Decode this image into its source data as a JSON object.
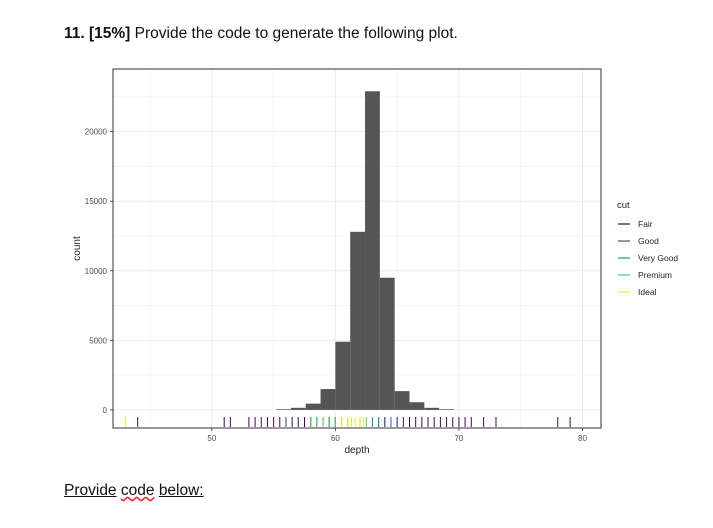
{
  "question": {
    "number": "11. [15%]",
    "text": "Provide the code to generate the following plot."
  },
  "footer": {
    "word1": "Provide",
    "word2": "code",
    "word3": "below:"
  },
  "chart_data": {
    "type": "bar",
    "xlabel": "depth",
    "ylabel": "count",
    "xlim": [
      42,
      81.5
    ],
    "ylim": [
      -1300,
      24500
    ],
    "x_ticks": [
      50,
      60,
      70,
      80
    ],
    "y_ticks": [
      0,
      5000,
      10000,
      15000,
      20000
    ],
    "grid": true,
    "binwidth": 1.2,
    "bins": [
      {
        "x": 55.8,
        "count": 50
      },
      {
        "x": 57.0,
        "count": 150
      },
      {
        "x": 58.2,
        "count": 450
      },
      {
        "x": 59.4,
        "count": 1500
      },
      {
        "x": 60.6,
        "count": 4900
      },
      {
        "x": 61.8,
        "count": 12800
      },
      {
        "x": 63.0,
        "count": 22900
      },
      {
        "x": 64.2,
        "count": 9500
      },
      {
        "x": 65.4,
        "count": 1350
      },
      {
        "x": 66.6,
        "count": 550
      },
      {
        "x": 67.8,
        "count": 150
      },
      {
        "x": 69.0,
        "count": 50
      }
    ],
    "bar_color": "#555555",
    "rug_groups": [
      {
        "cut": "Fair",
        "color": "#440154",
        "positions": [
          44,
          51,
          51.5,
          53,
          53.5,
          54,
          54.5,
          55,
          55.5,
          56,
          56.5,
          57,
          57.5,
          58,
          58.5,
          59,
          59.5,
          60,
          64,
          65,
          65.5,
          66,
          66.5,
          67,
          67.5,
          68,
          68.5,
          69,
          69.5,
          70,
          70.5,
          71,
          72,
          73,
          78,
          79
        ]
      },
      {
        "cut": "Good",
        "color": "#3b528b",
        "positions": [
          56,
          57,
          58,
          59,
          59.5,
          60,
          63.5,
          64,
          64.5,
          65
        ]
      },
      {
        "cut": "Very Good",
        "color": "#21918c",
        "positions": [
          58.5,
          59,
          59.5,
          60,
          60.5,
          63,
          63.5
        ]
      },
      {
        "cut": "Premium",
        "color": "#5ec962",
        "positions": [
          58,
          58.5,
          59,
          59.5,
          60,
          60.5,
          61,
          62,
          62.5
        ]
      },
      {
        "cut": "Ideal",
        "color": "#fde725",
        "positions": [
          43,
          60.5,
          61,
          61.3,
          61.6,
          62,
          62.3
        ]
      }
    ],
    "legend": {
      "title": "cut",
      "position": "right",
      "entries": [
        {
          "label": "Fair",
          "color": "#440154"
        },
        {
          "label": "Good",
          "color": "#3b528b"
        },
        {
          "label": "Very Good",
          "color": "#21918c"
        },
        {
          "label": "Premium",
          "color": "#5ec962"
        },
        {
          "label": "Ideal",
          "color": "#fde725"
        }
      ]
    }
  }
}
